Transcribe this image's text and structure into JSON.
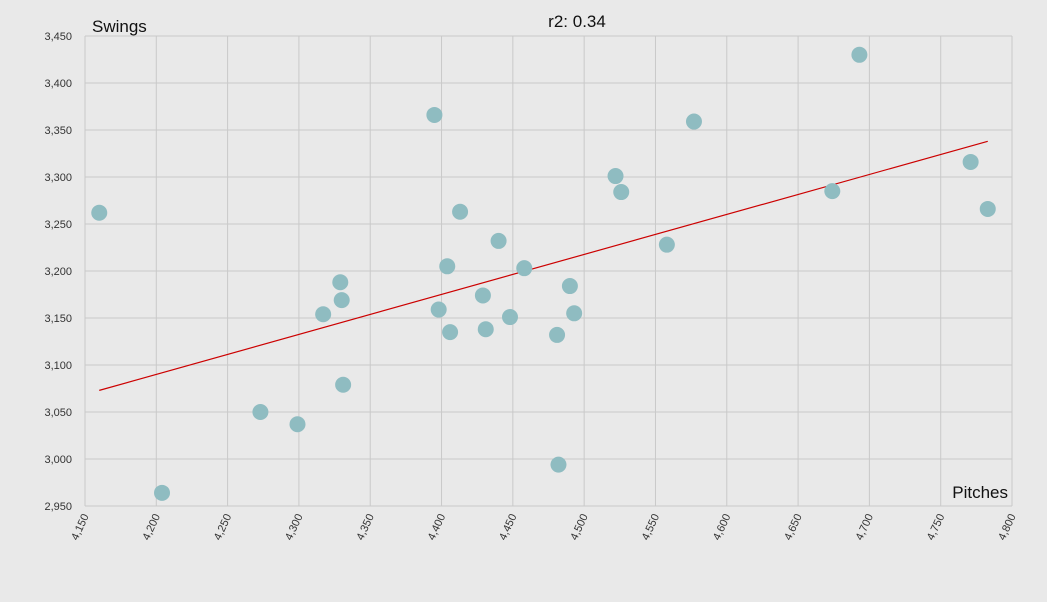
{
  "chart_data": {
    "type": "scatter",
    "title": "r2: 0.34",
    "xlabel": "Pitches",
    "ylabel": "Swings",
    "xlim": [
      4150,
      4800
    ],
    "ylim": [
      2950,
      3450
    ],
    "x_ticks": [
      4150,
      4200,
      4250,
      4300,
      4350,
      4400,
      4450,
      4500,
      4550,
      4600,
      4650,
      4700,
      4750,
      4800
    ],
    "y_ticks": [
      2950,
      3000,
      3050,
      3100,
      3150,
      3200,
      3250,
      3300,
      3350,
      3400,
      3450
    ],
    "x_tick_labels": [
      "4,150",
      "4,200",
      "4,250",
      "4,300",
      "4,350",
      "4,400",
      "4,450",
      "4,500",
      "4,550",
      "4,600",
      "4,650",
      "4,700",
      "4,750",
      "4,800"
    ],
    "y_tick_labels": [
      "2,950",
      "3,000",
      "3,050",
      "3,100",
      "3,150",
      "3,200",
      "3,250",
      "3,300",
      "3,350",
      "3,400",
      "3,450"
    ],
    "grid": true,
    "point_color": "#8fbcc1",
    "trend_color": "#cc0000",
    "points": [
      {
        "x": 4160,
        "y": 3262
      },
      {
        "x": 4204,
        "y": 2964
      },
      {
        "x": 4273,
        "y": 3050
      },
      {
        "x": 4299,
        "y": 3037
      },
      {
        "x": 4317,
        "y": 3154
      },
      {
        "x": 4329,
        "y": 3188
      },
      {
        "x": 4330,
        "y": 3169
      },
      {
        "x": 4331,
        "y": 3079
      },
      {
        "x": 4395,
        "y": 3366
      },
      {
        "x": 4398,
        "y": 3159
      },
      {
        "x": 4404,
        "y": 3205
      },
      {
        "x": 4406,
        "y": 3135
      },
      {
        "x": 4413,
        "y": 3263
      },
      {
        "x": 4429,
        "y": 3174
      },
      {
        "x": 4431,
        "y": 3138
      },
      {
        "x": 4440,
        "y": 3232
      },
      {
        "x": 4448,
        "y": 3151
      },
      {
        "x": 4458,
        "y": 3203
      },
      {
        "x": 4481,
        "y": 3132
      },
      {
        "x": 4482,
        "y": 2994
      },
      {
        "x": 4490,
        "y": 3184
      },
      {
        "x": 4493,
        "y": 3155
      },
      {
        "x": 4522,
        "y": 3301
      },
      {
        "x": 4526,
        "y": 3284
      },
      {
        "x": 4558,
        "y": 3228
      },
      {
        "x": 4577,
        "y": 3359
      },
      {
        "x": 4674,
        "y": 3285
      },
      {
        "x": 4693,
        "y": 3430
      },
      {
        "x": 4771,
        "y": 3316
      },
      {
        "x": 4783,
        "y": 3266
      }
    ],
    "trendline": {
      "x1": 4160,
      "y1": 3073,
      "x2": 4783,
      "y2": 3338
    }
  }
}
